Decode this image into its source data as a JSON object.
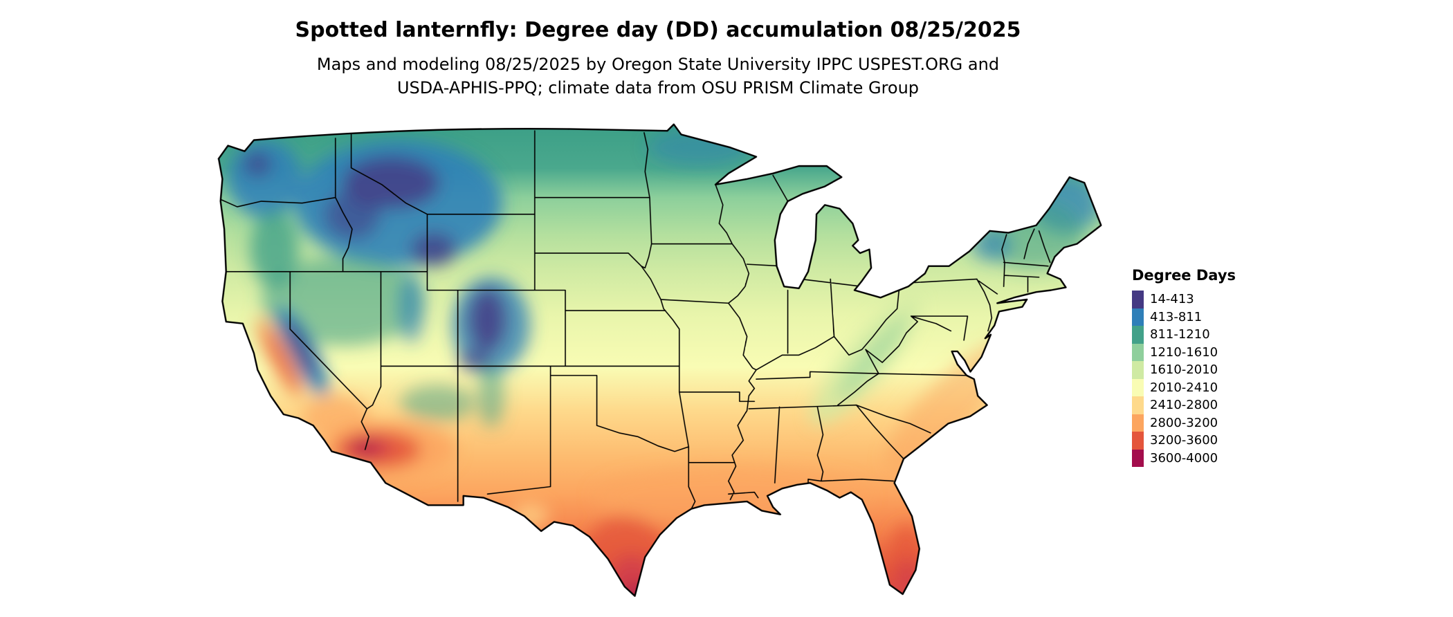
{
  "header": {
    "title": "Spotted lanternfly: Degree day (DD) accumulation 08/25/2025",
    "subtitle": "Maps and modeling 08/25/2025 by Oregon State University IPPC USPEST.ORG and USDA-APHIS-PPQ; climate data from OSU PRISM Climate Group"
  },
  "legend": {
    "title": "Degree Days",
    "items": [
      {
        "range": "14-413",
        "color": "#443983"
      },
      {
        "range": "413-811",
        "color": "#2f7fb8"
      },
      {
        "range": "811-1210",
        "color": "#42a189"
      },
      {
        "range": "1210-1610",
        "color": "#8fcf9c"
      },
      {
        "range": "1610-2010",
        "color": "#cfeaa3"
      },
      {
        "range": "2010-2410",
        "color": "#f9fcb4"
      },
      {
        "range": "2410-2800",
        "color": "#fed98b"
      },
      {
        "range": "2800-3200",
        "color": "#fca55f"
      },
      {
        "range": "3200-3600",
        "color": "#e4553b"
      },
      {
        "range": "3600-4000",
        "color": "#a30d4c"
      }
    ]
  }
}
